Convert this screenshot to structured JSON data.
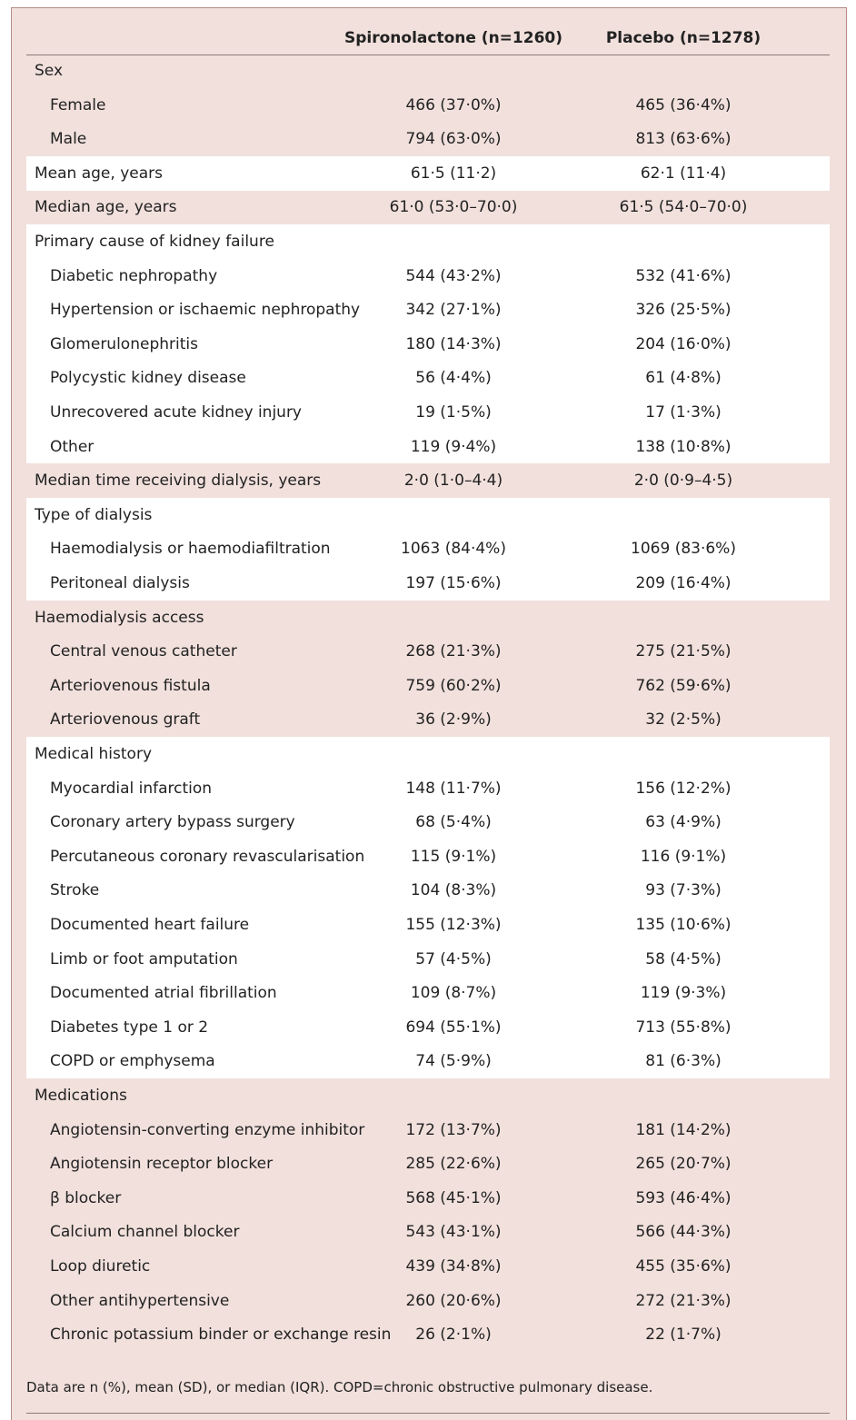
{
  "header": {
    "columns": [
      "Spironolactone (n=1260)",
      "Placebo (n=1278)"
    ]
  },
  "sections": [
    {
      "rows": [
        [
          "Sex"
        ],
        [
          "Female",
          "466 (37·0%)",
          "465 (36·4%)"
        ],
        [
          "Male",
          "794 (63·0%)",
          "813 (63·6%)"
        ]
      ]
    },
    {
      "rows": [
        [
          "Mean age, years",
          "61·5 (11·2)",
          "62·1 (11·4)"
        ]
      ]
    },
    {
      "rows": [
        [
          "Median age, years",
          "61·0 (53·0–70·0)",
          "61·5 (54·0–70·0)"
        ]
      ]
    },
    {
      "rows": [
        [
          "Primary cause of kidney failure"
        ],
        [
          "Diabetic nephropathy",
          "544 (43·2%)",
          "532 (41·6%)"
        ],
        [
          "Hypertension or ischaemic nephropathy",
          "342 (27·1%)",
          "326 (25·5%)"
        ],
        [
          "Glomerulonephritis",
          "180 (14·3%)",
          "204 (16·0%)"
        ],
        [
          "Polycystic kidney disease",
          "56 (4·4%)",
          "61 (4·8%)"
        ],
        [
          "Unrecovered acute kidney injury",
          "19 (1·5%)",
          "17 (1·3%)"
        ],
        [
          "Other",
          "119 (9·4%)",
          "138 (10·8%)"
        ]
      ]
    },
    {
      "rows": [
        [
          "Median time receiving dialysis, years",
          "2·0 (1·0–4·4)",
          "2·0 (0·9–4·5)"
        ]
      ]
    },
    {
      "rows": [
        [
          "Type of dialysis"
        ],
        [
          "Haemodialysis or haemodiafiltration",
          "1063 (84·4%)",
          "1069 (83·6%)"
        ],
        [
          "Peritoneal dialysis",
          "197 (15·6%)",
          "209 (16·4%)"
        ]
      ]
    },
    {
      "rows": [
        [
          "Haemodialysis access"
        ],
        [
          "Central venous catheter",
          "268 (21·3%)",
          "275 (21·5%)"
        ],
        [
          "Arteriovenous fistula",
          "759 (60·2%)",
          "762 (59·6%)"
        ],
        [
          "Arteriovenous graft",
          "36 (2·9%)",
          "32 (2·5%)"
        ]
      ]
    },
    {
      "rows": [
        [
          "Medical history"
        ],
        [
          "Myocardial infarction",
          "148 (11·7%)",
          "156 (12·2%)"
        ],
        [
          "Coronary artery bypass surgery",
          "68 (5·4%)",
          "63 (4·9%)"
        ],
        [
          "Percutaneous coronary revascularisation",
          "115 (9·1%)",
          "116 (9·1%)"
        ],
        [
          "Stroke",
          "104 (8·3%)",
          "93 (7·3%)"
        ],
        [
          "Documented heart failure",
          "155 (12·3%)",
          "135 (10·6%)"
        ],
        [
          "Limb or foot amputation",
          "57 (4·5%)",
          "58 (4·5%)"
        ],
        [
          "Documented atrial fibrillation",
          "109 (8·7%)",
          "119 (9·3%)"
        ],
        [
          "Diabetes type 1 or 2",
          "694 (55·1%)",
          "713 (55·8%)"
        ],
        [
          "COPD or emphysema",
          "74 (5·9%)",
          "81 (6·3%)"
        ]
      ]
    },
    {
      "rows": [
        [
          "Medications"
        ],
        [
          "Angiotensin-converting enzyme inhibitor",
          "172 (13·7%)",
          "181 (14·2%)"
        ],
        [
          "Angiotensin receptor blocker",
          "285 (22·6%)",
          "265 (20·7%)"
        ],
        [
          "β blocker",
          "568 (45·1%)",
          "593 (46·4%)"
        ],
        [
          "Calcium channel blocker",
          "543 (43·1%)",
          "566 (44·3%)"
        ],
        [
          "Loop diuretic",
          "439 (34·8%)",
          "455 (35·6%)"
        ],
        [
          "Other antihypertensive",
          "260 (20·6%)",
          "272 (21·3%)"
        ],
        [
          "Chronic potassium binder or exchange resin",
          "26 (2·1%)",
          "22 (1·7%)"
        ]
      ]
    }
  ],
  "footnote": "Data are n (%), mean (SD), or median (IQR). COPD=chronic obstructive pulmonary disease."
}
